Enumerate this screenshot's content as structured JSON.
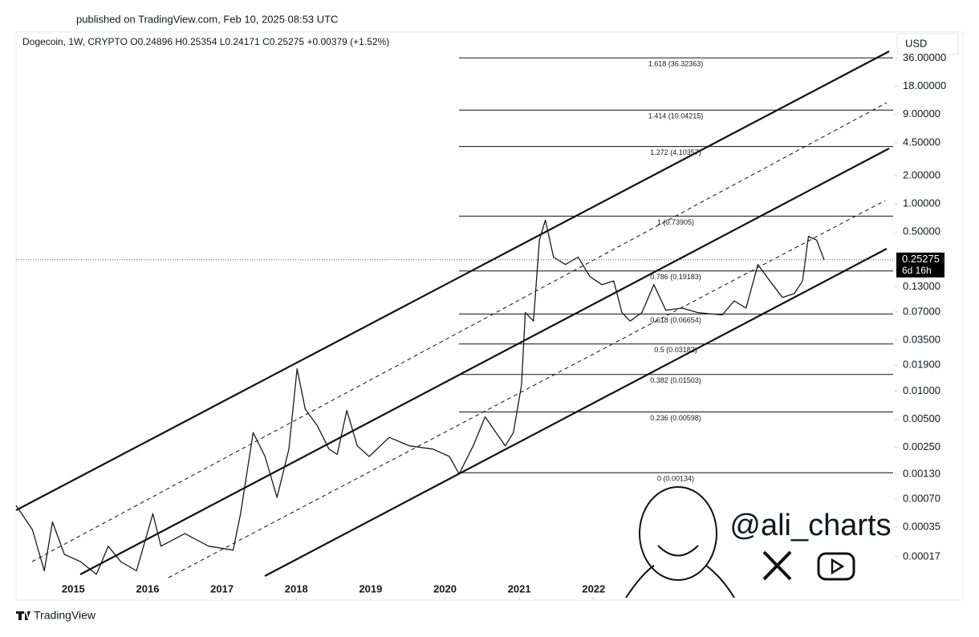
{
  "header": "published on TradingView.com, Feb 10, 2025 08:53 UTC",
  "footer": "TradingView",
  "watermark": "@ali_charts",
  "chart_data": {
    "type": "line",
    "legend": "Dogecoin, 1W, CRYPTO  O0.24896  H0.25354  L0.24171  C0.25275  +0.00379 (+1.52%)",
    "currency": "USD",
    "log_scale": true,
    "grid": false,
    "x": [
      2014.23,
      2014.45,
      2014.61,
      2014.72,
      2014.88,
      2015.1,
      2015.31,
      2015.47,
      2015.64,
      2015.85,
      2016.07,
      2016.18,
      2016.5,
      2016.82,
      2017.15,
      2017.25,
      2017.42,
      2017.58,
      2017.74,
      2017.9,
      2018.01,
      2018.12,
      2018.28,
      2018.44,
      2018.55,
      2018.68,
      2018.82,
      2018.98,
      2019.25,
      2019.52,
      2019.84,
      2020.06,
      2020.19,
      2020.38,
      2020.54,
      2020.81,
      2020.92,
      2021.03,
      2021.08,
      2021.19,
      2021.27,
      2021.35,
      2021.46,
      2021.62,
      2021.79,
      2021.95,
      2022.11,
      2022.27,
      2022.38,
      2022.49,
      2022.65,
      2022.81,
      2022.97,
      2023.19,
      2023.4,
      2023.73,
      2023.89,
      2024.05,
      2024.21,
      2024.37,
      2024.54,
      2024.7,
      2024.81,
      2024.89,
      2025.0,
      2025.1
    ],
    "series": [
      {
        "name": "Dogecoin",
        "color": "#1a1a1a",
        "values": [
          0.0006,
          0.00033,
          0.00012,
          0.0004,
          0.00018,
          0.00015,
          0.00011,
          0.00022,
          0.00015,
          0.00012,
          0.00049,
          0.00022,
          0.0003,
          0.00022,
          0.0002,
          0.00049,
          0.0036,
          0.002,
          0.00073,
          0.0024,
          0.0173,
          0.0064,
          0.0043,
          0.0024,
          0.0021,
          0.0062,
          0.0026,
          0.002,
          0.0032,
          0.0026,
          0.0024,
          0.002,
          0.0013,
          0.0026,
          0.0053,
          0.0026,
          0.0036,
          0.0116,
          0.069,
          0.056,
          0.41,
          0.67,
          0.27,
          0.225,
          0.27,
          0.167,
          0.137,
          0.15,
          0.069,
          0.056,
          0.069,
          0.137,
          0.073,
          0.077,
          0.069,
          0.065,
          0.092,
          0.077,
          0.225,
          0.15,
          0.1,
          0.11,
          0.15,
          0.45,
          0.41,
          0.25275
        ]
      }
    ],
    "xlim": [
      2014.23,
      2026.05
    ],
    "xticks": [
      2015,
      2016,
      2017,
      2018,
      2019,
      2020,
      2021,
      2022
    ],
    "ylim": [
      6.2e-05,
      62
    ],
    "yticks": [
      {
        "value": 36,
        "label": "36.00000"
      },
      {
        "value": 18,
        "label": "18.00000"
      },
      {
        "value": 9,
        "label": "9.00000"
      },
      {
        "value": 4.5,
        "label": "4.50000"
      },
      {
        "value": 2,
        "label": "2.00000"
      },
      {
        "value": 1,
        "label": "1.00000"
      },
      {
        "value": 0.5,
        "label": "0.50000"
      },
      {
        "value": 0.13,
        "label": "0.13000"
      },
      {
        "value": 0.07,
        "label": "0.07000"
      },
      {
        "value": 0.035,
        "label": "0.03500"
      },
      {
        "value": 0.019,
        "label": "0.01900"
      },
      {
        "value": 0.01,
        "label": "0.01000"
      },
      {
        "value": 0.005,
        "label": "0.00500"
      },
      {
        "value": 0.0025,
        "label": "0.00250"
      },
      {
        "value": 0.0013,
        "label": "0.00130"
      },
      {
        "value": 0.0007,
        "label": "0.00070"
      },
      {
        "value": 0.00035,
        "label": "0.00035"
      },
      {
        "value": 0.00017,
        "label": "0.00017"
      }
    ],
    "price_label": 0.25275,
    "countdown": "6d 16h",
    "fib_levels": [
      {
        "value": 36.32363,
        "label": "1.618 (36.32363)"
      },
      {
        "value": 10.04215,
        "label": "1.414 (10.04215)"
      },
      {
        "value": 4.10357,
        "label": "1.272 (4.10357)"
      },
      {
        "value": 0.73905,
        "label": "1 (0.73905)"
      },
      {
        "value": 0.19183,
        "label": "0.786 (0.19183)"
      },
      {
        "value": 0.06654,
        "label": "0.618 (0.06654)"
      },
      {
        "value": 0.03182,
        "label": "0.5 (0.03182)"
      },
      {
        "value": 0.01503,
        "label": "0.382 (0.01503)"
      },
      {
        "value": 0.00598,
        "label": "0.236 (0.00598)"
      },
      {
        "value": 0.00134,
        "label": "0 (0.00134)"
      }
    ]
  }
}
